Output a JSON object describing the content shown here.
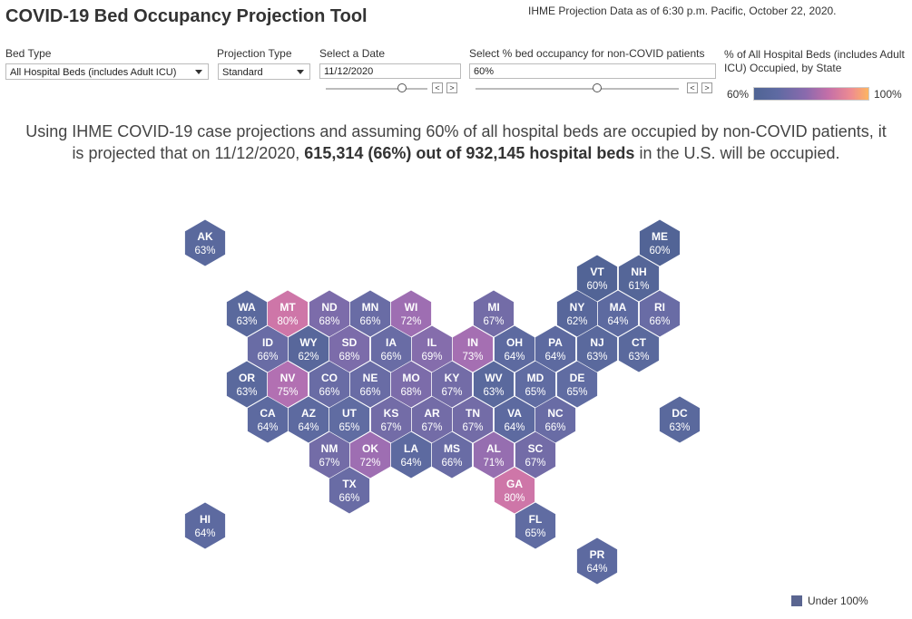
{
  "header": {
    "title": "COVID-19 Bed Occupancy Projection Tool",
    "as_of": "IHME Projection Data as of 6:30 p.m. Pacific, October 22, 2020."
  },
  "controls": {
    "bed_type": {
      "label": "Bed Type",
      "value": "All Hospital Beds (includes Adult ICU)"
    },
    "projection_type": {
      "label": "Projection Type",
      "value": "Standard"
    },
    "date": {
      "label": "Select a Date",
      "value": "11/12/2020",
      "prev": "<",
      "next": ">"
    },
    "occupancy": {
      "label": "Select % bed occupancy for non-COVID patients",
      "value": "60%",
      "prev": "<",
      "next": ">"
    }
  },
  "legend": {
    "title": "% of All Hospital Beds (includes Adult ICU) Occupied, by State",
    "min": "60%",
    "max": "100%",
    "under_label": "Under 100%"
  },
  "summary": {
    "pre": "Using IHME COVID-19 case projections and assuming 60% of all hospital beds are occupied by non-COVID patients, it is projected that on 11/12/2020, ",
    "bold": "615,314 (66%) out of 932,145 hospital beds",
    "post": " in the U.S. will be occupied."
  },
  "states": [
    {
      "code": "AK",
      "pct": "63%",
      "value": 63
    },
    {
      "code": "ME",
      "pct": "60%",
      "value": 60
    },
    {
      "code": "VT",
      "pct": "60%",
      "value": 60
    },
    {
      "code": "NH",
      "pct": "61%",
      "value": 61
    },
    {
      "code": "WA",
      "pct": "63%",
      "value": 63
    },
    {
      "code": "MT",
      "pct": "80%",
      "value": 80
    },
    {
      "code": "ND",
      "pct": "68%",
      "value": 68
    },
    {
      "code": "MN",
      "pct": "66%",
      "value": 66
    },
    {
      "code": "WI",
      "pct": "72%",
      "value": 72
    },
    {
      "code": "MI",
      "pct": "67%",
      "value": 67
    },
    {
      "code": "NY",
      "pct": "62%",
      "value": 62
    },
    {
      "code": "MA",
      "pct": "64%",
      "value": 64
    },
    {
      "code": "RI",
      "pct": "66%",
      "value": 66
    },
    {
      "code": "ID",
      "pct": "66%",
      "value": 66
    },
    {
      "code": "WY",
      "pct": "62%",
      "value": 62
    },
    {
      "code": "SD",
      "pct": "68%",
      "value": 68
    },
    {
      "code": "IA",
      "pct": "66%",
      "value": 66
    },
    {
      "code": "IL",
      "pct": "69%",
      "value": 69
    },
    {
      "code": "IN",
      "pct": "73%",
      "value": 73
    },
    {
      "code": "OH",
      "pct": "64%",
      "value": 64
    },
    {
      "code": "PA",
      "pct": "64%",
      "value": 64
    },
    {
      "code": "NJ",
      "pct": "63%",
      "value": 63
    },
    {
      "code": "CT",
      "pct": "63%",
      "value": 63
    },
    {
      "code": "OR",
      "pct": "63%",
      "value": 63
    },
    {
      "code": "NV",
      "pct": "75%",
      "value": 75
    },
    {
      "code": "CO",
      "pct": "66%",
      "value": 66
    },
    {
      "code": "NE",
      "pct": "66%",
      "value": 66
    },
    {
      "code": "MO",
      "pct": "68%",
      "value": 68
    },
    {
      "code": "KY",
      "pct": "67%",
      "value": 67
    },
    {
      "code": "WV",
      "pct": "63%",
      "value": 63
    },
    {
      "code": "MD",
      "pct": "65%",
      "value": 65
    },
    {
      "code": "DE",
      "pct": "65%",
      "value": 65
    },
    {
      "code": "CA",
      "pct": "64%",
      "value": 64
    },
    {
      "code": "AZ",
      "pct": "64%",
      "value": 64
    },
    {
      "code": "UT",
      "pct": "65%",
      "value": 65
    },
    {
      "code": "KS",
      "pct": "67%",
      "value": 67
    },
    {
      "code": "AR",
      "pct": "67%",
      "value": 67
    },
    {
      "code": "TN",
      "pct": "67%",
      "value": 67
    },
    {
      "code": "VA",
      "pct": "64%",
      "value": 64
    },
    {
      "code": "NC",
      "pct": "66%",
      "value": 66
    },
    {
      "code": "DC",
      "pct": "63%",
      "value": 63
    },
    {
      "code": "NM",
      "pct": "67%",
      "value": 67
    },
    {
      "code": "OK",
      "pct": "72%",
      "value": 72
    },
    {
      "code": "LA",
      "pct": "64%",
      "value": 64
    },
    {
      "code": "MS",
      "pct": "66%",
      "value": 66
    },
    {
      "code": "AL",
      "pct": "71%",
      "value": 71
    },
    {
      "code": "SC",
      "pct": "67%",
      "value": 67
    },
    {
      "code": "TX",
      "pct": "66%",
      "value": 66
    },
    {
      "code": "GA",
      "pct": "80%",
      "value": 80
    },
    {
      "code": "HI",
      "pct": "64%",
      "value": 64
    },
    {
      "code": "FL",
      "pct": "65%",
      "value": 65
    },
    {
      "code": "PR",
      "pct": "64%",
      "value": 64
    }
  ]
}
